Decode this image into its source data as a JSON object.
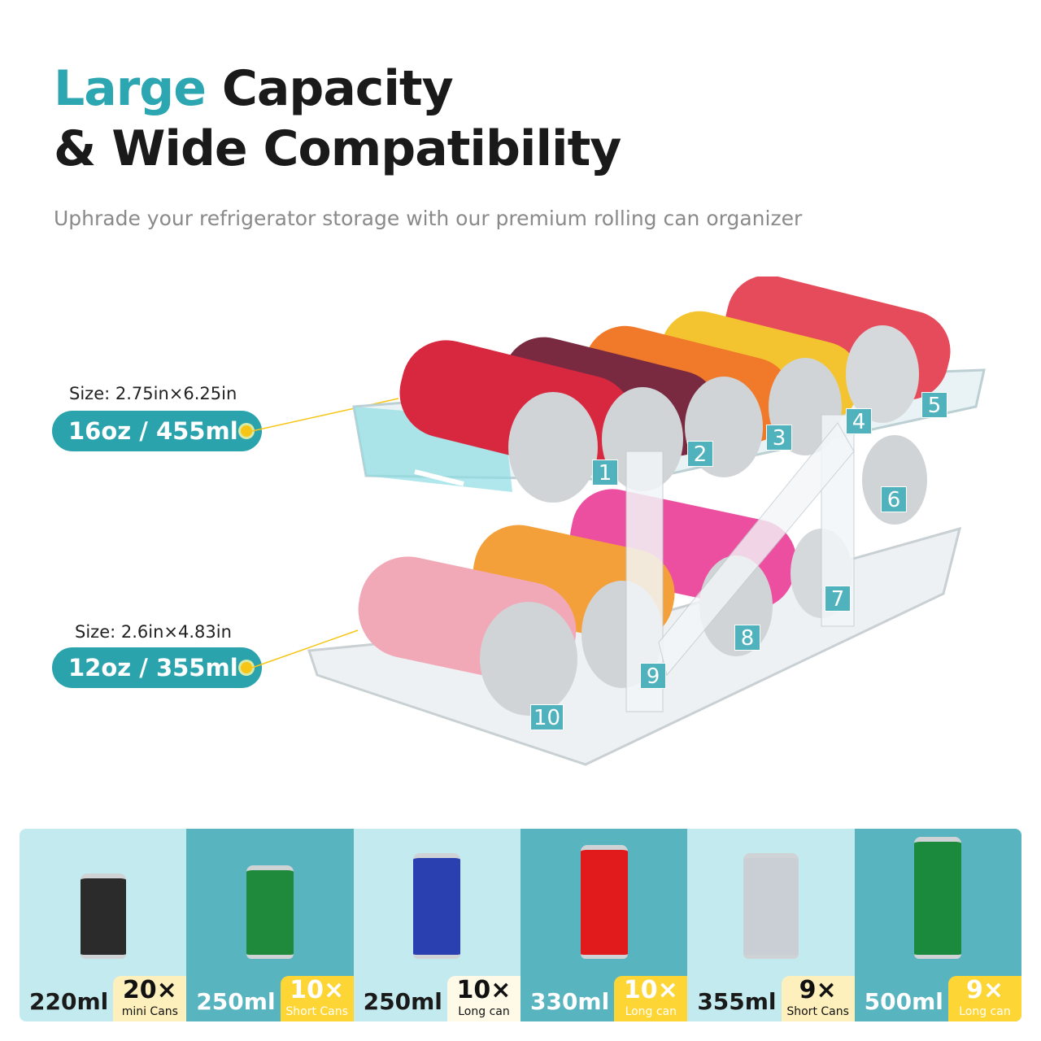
{
  "header": {
    "title_accent": "Large",
    "title_rest": " Capacity",
    "title_line2": "& Wide Compatibility",
    "subtitle": "Uphrade your refrigerator storage with our premium rolling can organizer"
  },
  "callouts": [
    {
      "size": "Size: 2.75in×6.25in",
      "capacity": "16oz / 455ml"
    },
    {
      "size": "Size: 2.6in×4.83in",
      "capacity": "12oz / 355ml"
    }
  ],
  "slots": [
    "1",
    "2",
    "3",
    "4",
    "5",
    "6",
    "7",
    "8",
    "9",
    "10"
  ],
  "colors": {
    "accent": "#2ca6b1",
    "panel_light": "#c3ebef",
    "panel_teal": "#58b4bf",
    "badge_yellow": "#fdd535"
  },
  "compat": [
    {
      "volume": "220ml",
      "count": "20×",
      "type": "mini Cans",
      "can_color": "#2b2b2b"
    },
    {
      "volume": "250ml",
      "count": "10×",
      "type": "Short Cans",
      "can_color": "#1f8a3b"
    },
    {
      "volume": "250ml",
      "count": "10×",
      "type": "Long can",
      "can_color": "#2a3fb0"
    },
    {
      "volume": "330ml",
      "count": "10×",
      "type": "Long can",
      "can_color": "#e11b1b"
    },
    {
      "volume": "355ml",
      "count": "9×",
      "type": "Short Cans",
      "can_color": "#c9cfd4"
    },
    {
      "volume": "500ml",
      "count": "9×",
      "type": "Long can",
      "can_color": "#1c8a3c"
    }
  ]
}
